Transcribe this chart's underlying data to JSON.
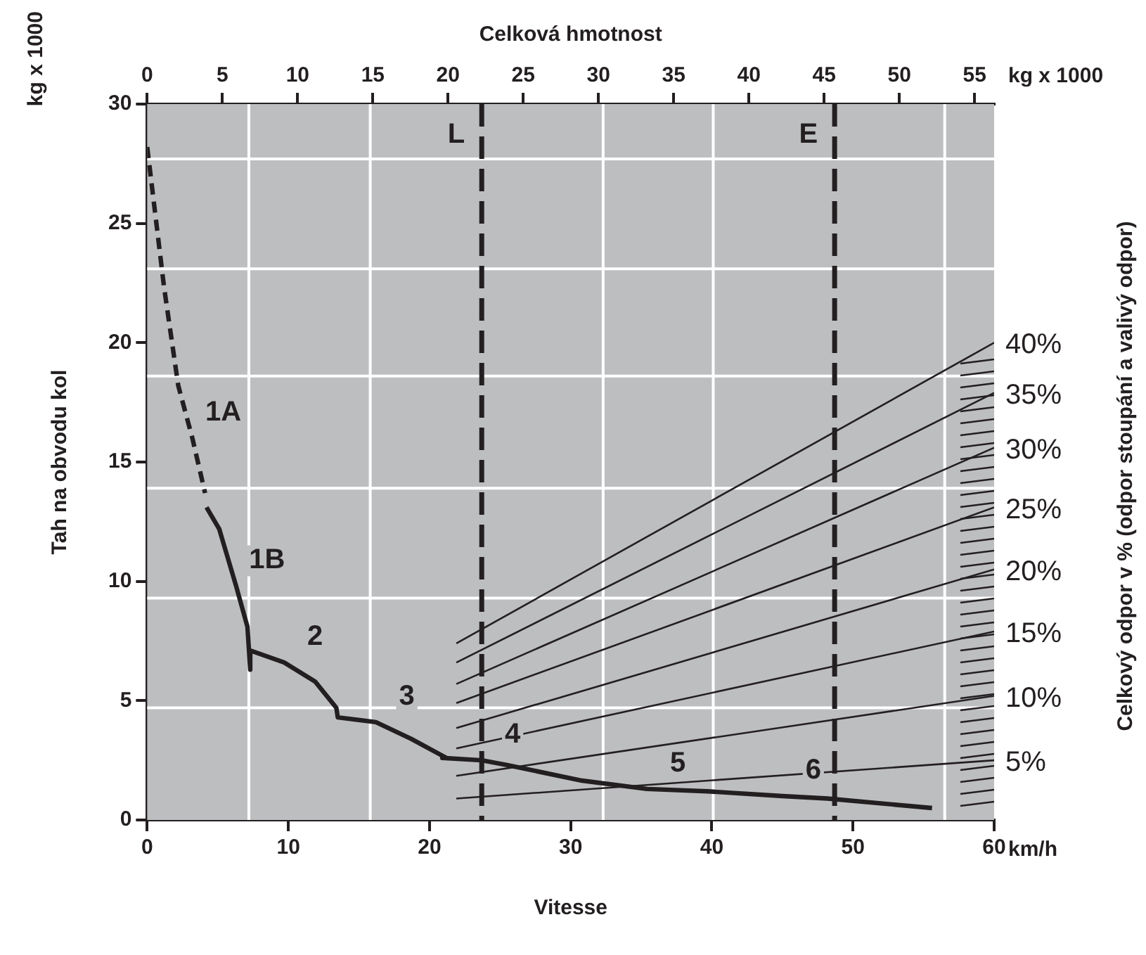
{
  "chart_data": {
    "type": "line",
    "xlabel": "Vitesse",
    "x2label": "Celková hmotnost",
    "ylabel": "Tah na obvodu kol",
    "xlim": [
      0,
      60
    ],
    "xticks": [
      0,
      10,
      20,
      30,
      40,
      50,
      60
    ],
    "x2lim": [
      0,
      56.3
    ],
    "x2ticks": [
      0,
      5,
      10,
      15,
      20,
      25,
      30,
      35,
      40,
      45,
      50,
      55
    ],
    "ylim": [
      0,
      30
    ],
    "yticks": [
      0,
      5,
      10,
      15,
      20,
      25,
      30
    ],
    "grid": false,
    "legend": "right",
    "marker": "none",
    "ref_lines": [
      {
        "axis": "x",
        "value": 7.2,
        "color": "#ffffff"
      },
      {
        "axis": "x",
        "value": 15.8,
        "color": "#ffffff"
      },
      {
        "axis": "x",
        "value": 32.3,
        "color": "#ffffff"
      },
      {
        "axis": "x",
        "value": 40.1,
        "color": "#ffffff"
      },
      {
        "axis": "x",
        "value": 56.5,
        "color": "#ffffff"
      },
      {
        "axis": "y",
        "value": 4.7,
        "color": "#ffffff"
      },
      {
        "axis": "y",
        "value": 9.3,
        "color": "#ffffff"
      },
      {
        "axis": "y",
        "value": 13.9,
        "color": "#ffffff"
      },
      {
        "axis": "y",
        "value": 18.6,
        "color": "#ffffff"
      },
      {
        "axis": "y",
        "value": 23.1,
        "color": "#ffffff"
      },
      {
        "axis": "y",
        "value": 27.7,
        "color": "#ffffff"
      },
      {
        "axis": "x",
        "value": 23.7,
        "label": "L",
        "color": "#231f20",
        "line_style": "dashed"
      },
      {
        "axis": "x",
        "value": 48.7,
        "label": "E",
        "color": "#231f20",
        "line_style": "dashed"
      }
    ],
    "annotations": [
      "km/h",
      "kg x 1000",
      "kg x 1000",
      "Celkový odpor v % (odpor stoupání a valivý odpor)",
      {
        "text": "1A",
        "x": 3.2,
        "y": 16
      },
      {
        "text": "1B",
        "x": 6.3,
        "y": 9.8
      },
      {
        "text": "2",
        "x": 9.7,
        "y": 6.6
      },
      {
        "text": "3",
        "x": 16.2,
        "y": 4.1
      },
      {
        "text": "4",
        "x": 23.7,
        "y": 2.5
      },
      {
        "text": "5",
        "x": 35.4,
        "y": 1.3
      },
      {
        "text": "6",
        "x": 45,
        "y": 1.0
      }
    ],
    "series": [
      {
        "color": "#231f20",
        "line_style": "dashed",
        "x": [
          0,
          1.2,
          2.2,
          3.2,
          4.1
        ],
        "values": [
          28.2,
          22.3,
          18.2,
          16,
          13.7
        ]
      },
      {
        "color": "#231f20",
        "line_style": "solid",
        "x": [
          4.2,
          5.1,
          5.3,
          6.3,
          7.1,
          7.3,
          7.3,
          9.7,
          11.9,
          13.4,
          13.5,
          16.2,
          18.7,
          21.2,
          20.9,
          23.7,
          25.5,
          30.8,
          35.4,
          39.7,
          45,
          48.2,
          55.6
        ],
        "values": [
          13.1,
          12.2,
          11.8,
          9.8,
          8.1,
          6.3,
          7.1,
          6.6,
          5.8,
          4.7,
          4.3,
          4.1,
          3.4,
          2.6,
          2.6,
          2.5,
          2.3,
          1.65,
          1.3,
          1.2,
          1.0,
          0.9,
          0.5
        ]
      },
      {
        "name": "40%",
        "color": "#231f20",
        "x": [
          21.9,
          60
        ],
        "values": [
          7.4,
          20.0
        ]
      },
      {
        "name": "35%",
        "color": "#231f20",
        "x": [
          21.9,
          60
        ],
        "values": [
          6.6,
          17.9
        ]
      },
      {
        "name": "30%",
        "color": "#231f20",
        "x": [
          21.9,
          60
        ],
        "values": [
          5.7,
          15.6
        ]
      },
      {
        "name": "25%",
        "color": "#231f20",
        "x": [
          21.9,
          60
        ],
        "values": [
          4.9,
          13.1
        ]
      },
      {
        "name": "20%",
        "color": "#231f20",
        "x": [
          21.9,
          60
        ],
        "values": [
          3.85,
          10.5
        ]
      },
      {
        "name": "15%",
        "color": "#231f20",
        "x": [
          21.9,
          60
        ],
        "values": [
          3.0,
          7.9
        ]
      },
      {
        "name": "10%",
        "color": "#231f20",
        "x": [
          21.9,
          60
        ],
        "values": [
          1.85,
          5.2
        ]
      },
      {
        "name": "5%",
        "color": "#231f20",
        "x": [
          21.9,
          60
        ],
        "values": [
          0.9,
          2.5
        ]
      }
    ]
  }
}
